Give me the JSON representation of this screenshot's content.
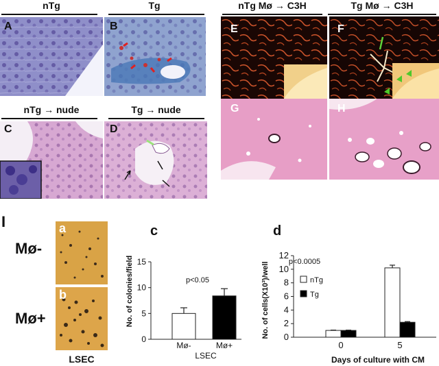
{
  "top_left": {
    "headers": [
      "nTg",
      "Tg",
      "nTg → nude",
      "Tg → nude"
    ],
    "panel_labels": [
      "A",
      "B",
      "C",
      "D"
    ]
  },
  "top_right": {
    "headers": [
      "nTg Mø → C3H",
      "Tg Mø → C3H"
    ],
    "panel_labels": [
      "E",
      "F",
      "G",
      "H"
    ]
  },
  "section_I": {
    "label": "I",
    "photo_labels": [
      "a",
      "b"
    ],
    "row_labels": [
      "Mø-",
      "Mø+"
    ],
    "photo_caption": "LSEC"
  },
  "chart_data": [
    {
      "type": "bar",
      "panel": "c",
      "categories": [
        "Mø-",
        "Mø+"
      ],
      "values": [
        5.0,
        8.4
      ],
      "errors": [
        1.1,
        1.4
      ],
      "colors": [
        "#ffffff",
        "#000000"
      ],
      "ylabel": "No. of colonies/field",
      "xlabel": "LSEC",
      "ylim": [
        0,
        15
      ],
      "yticks": [
        0,
        5,
        10,
        15
      ],
      "annotation": "p<0.05"
    },
    {
      "type": "bar",
      "panel": "d",
      "categories": [
        "0",
        "5"
      ],
      "series": [
        {
          "name": "nTg",
          "values": [
            1.0,
            10.2
          ],
          "errors": [
            0.05,
            0.4
          ],
          "color": "#ffffff"
        },
        {
          "name": "Tg",
          "values": [
            1.0,
            2.2
          ],
          "errors": [
            0.05,
            0.1
          ],
          "color": "#000000"
        }
      ],
      "ylabel": "No. of cells(X10³)/well",
      "xlabel": "Days of culture with CM",
      "ylim": [
        0,
        12
      ],
      "yticks": [
        0,
        2,
        4,
        6,
        8,
        10,
        12
      ],
      "annotation": "p<0.0005",
      "legend": "top-left"
    }
  ]
}
